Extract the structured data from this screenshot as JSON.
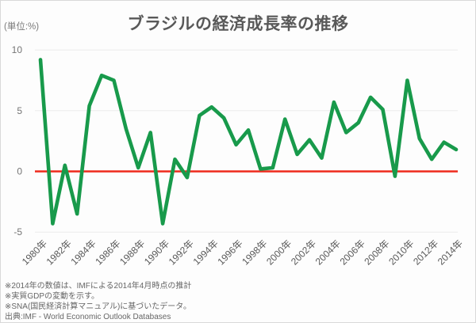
{
  "chart_data": {
    "type": "line",
    "title": "ブラジルの経済成長率の推移",
    "unit_label": "(単位:%)",
    "xlabel": "",
    "ylabel": "",
    "x": [
      1980,
      1981,
      1982,
      1983,
      1984,
      1985,
      1986,
      1987,
      1988,
      1989,
      1990,
      1991,
      1992,
      1993,
      1994,
      1995,
      1996,
      1997,
      1998,
      1999,
      2000,
      2001,
      2002,
      2003,
      2004,
      2005,
      2006,
      2007,
      2008,
      2009,
      2010,
      2011,
      2012,
      2013,
      2014
    ],
    "x_tick_step": 2,
    "x_tick_suffix": "年",
    "yticks": [
      10,
      5,
      0,
      -5
    ],
    "ylim": [
      -5,
      10
    ],
    "grid": true,
    "grid_color": "#ebebeb",
    "zero_line_color": "#ee2a1c",
    "legend": "none",
    "series": [
      {
        "name": "経済成長率",
        "color": "#189a4b",
        "values": [
          9.2,
          -4.3,
          0.5,
          -3.5,
          5.4,
          7.9,
          7.5,
          3.5,
          0.3,
          3.2,
          -4.3,
          1.0,
          -0.5,
          4.6,
          5.3,
          4.4,
          2.2,
          3.4,
          0.2,
          0.3,
          4.3,
          1.4,
          2.6,
          1.1,
          5.7,
          3.2,
          4.0,
          6.1,
          5.1,
          -0.4,
          7.5,
          2.7,
          1.0,
          2.4,
          1.8
        ]
      }
    ]
  },
  "footnotes": [
    "※2014年の数値は、IMFによる2014年4月時点の推計",
    "※実質GDPの変動を示す。",
    "※SNA(国民経済計算マニュアル)に基づいたデータ。",
    "出典:IMF - World Economic Outlook Databases"
  ]
}
